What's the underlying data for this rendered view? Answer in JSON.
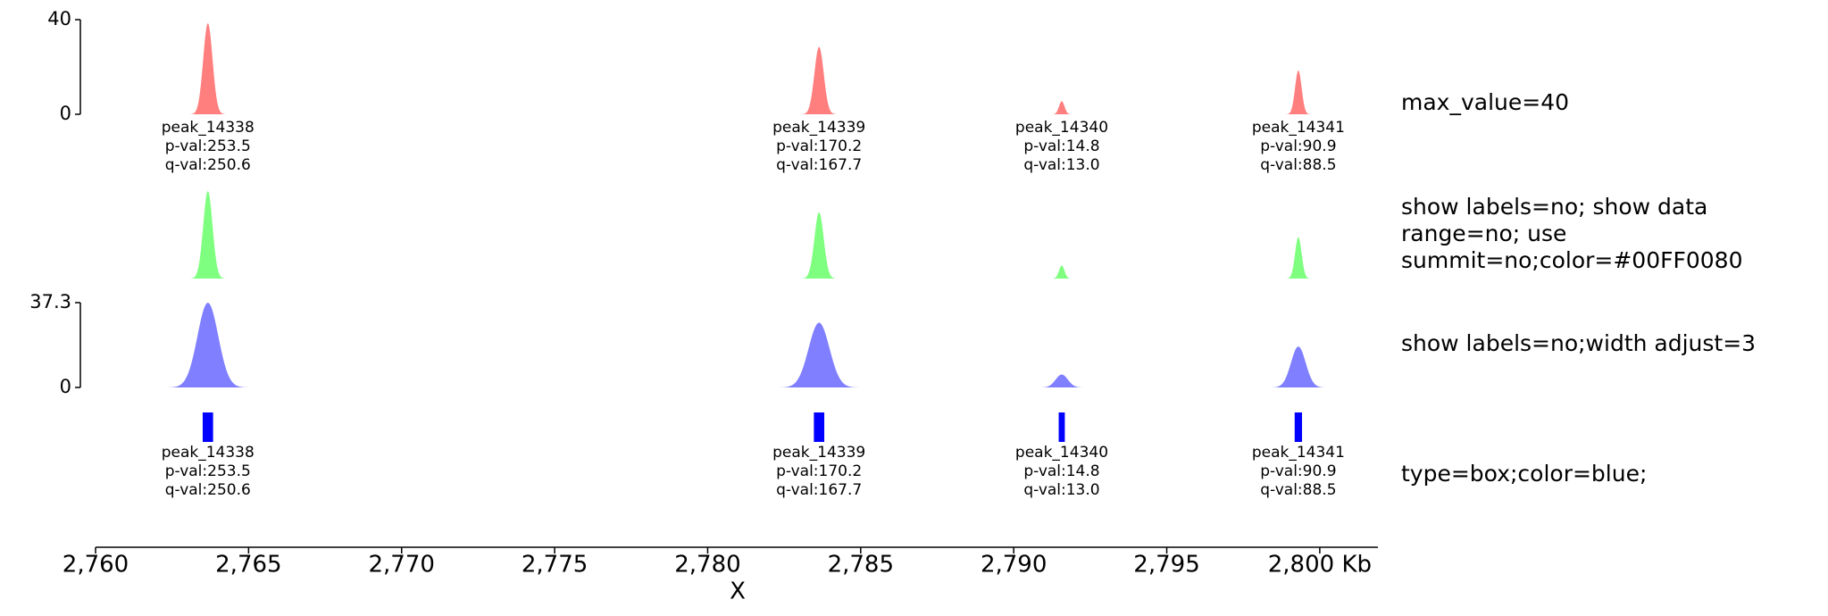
{
  "chart_data": {
    "type": "genome_tracks",
    "xlim": [
      2760,
      2801.9
    ],
    "xticks": [
      {
        "value": 2760,
        "label": "2,760"
      },
      {
        "value": 2765,
        "label": "2,765"
      },
      {
        "value": 2770,
        "label": "2,770"
      },
      {
        "value": 2775,
        "label": "2,775"
      },
      {
        "value": 2780,
        "label": "2,780"
      },
      {
        "value": 2785,
        "label": "2,785"
      },
      {
        "value": 2790,
        "label": "2,790"
      },
      {
        "value": 2795,
        "label": "2,795"
      },
      {
        "value": 2800,
        "label": "2,800 Kb"
      }
    ],
    "xlabel": "X",
    "peaks": [
      {
        "name": "peak_14338",
        "start": 2763.5,
        "end": 2763.84,
        "p_label": "p-val:253.5",
        "q_label": "q-val:250.6"
      },
      {
        "name": "peak_14339",
        "start": 2783.47,
        "end": 2783.81,
        "p_label": "p-val:170.2",
        "q_label": "q-val:167.7"
      },
      {
        "name": "peak_14340",
        "start": 2791.47,
        "end": 2791.67,
        "p_label": "p-val:14.8",
        "q_label": "q-val:13.0"
      },
      {
        "name": "peak_14341",
        "start": 2799.18,
        "end": 2799.42,
        "p_label": "p-val:90.9",
        "q_label": "q-val:88.5"
      }
    ],
    "tracks": [
      {
        "type": "peaks",
        "color": "#FF000080",
        "ylim": [
          0,
          40
        ],
        "yticks": [
          0,
          40
        ],
        "values": [
          38.5,
          28.5,
          5.5,
          18.5
        ],
        "show_labels": true,
        "title_lines": [
          "max_value=40"
        ]
      },
      {
        "type": "peaks",
        "color": "#00FF0080",
        "ylim": [
          0,
          40
        ],
        "values": [
          37,
          28,
          5.5,
          17.5
        ],
        "show_labels": false,
        "title_lines": [
          "show labels=no; show data",
          "range=no; use",
          "summit=no;color=#00FF0080"
        ]
      },
      {
        "type": "peaks",
        "color": "#0000FF80",
        "ylim": [
          0,
          37.3
        ],
        "yticks": [
          0,
          37.3
        ],
        "values": [
          37.3,
          28.5,
          5.7,
          18
        ],
        "show_labels": false,
        "title_lines": [
          "show labels=no;width adjust=3"
        ]
      },
      {
        "type": "box",
        "color": "blue",
        "show_labels": true,
        "title_lines": [
          "type=box;color=blue;"
        ]
      }
    ]
  }
}
